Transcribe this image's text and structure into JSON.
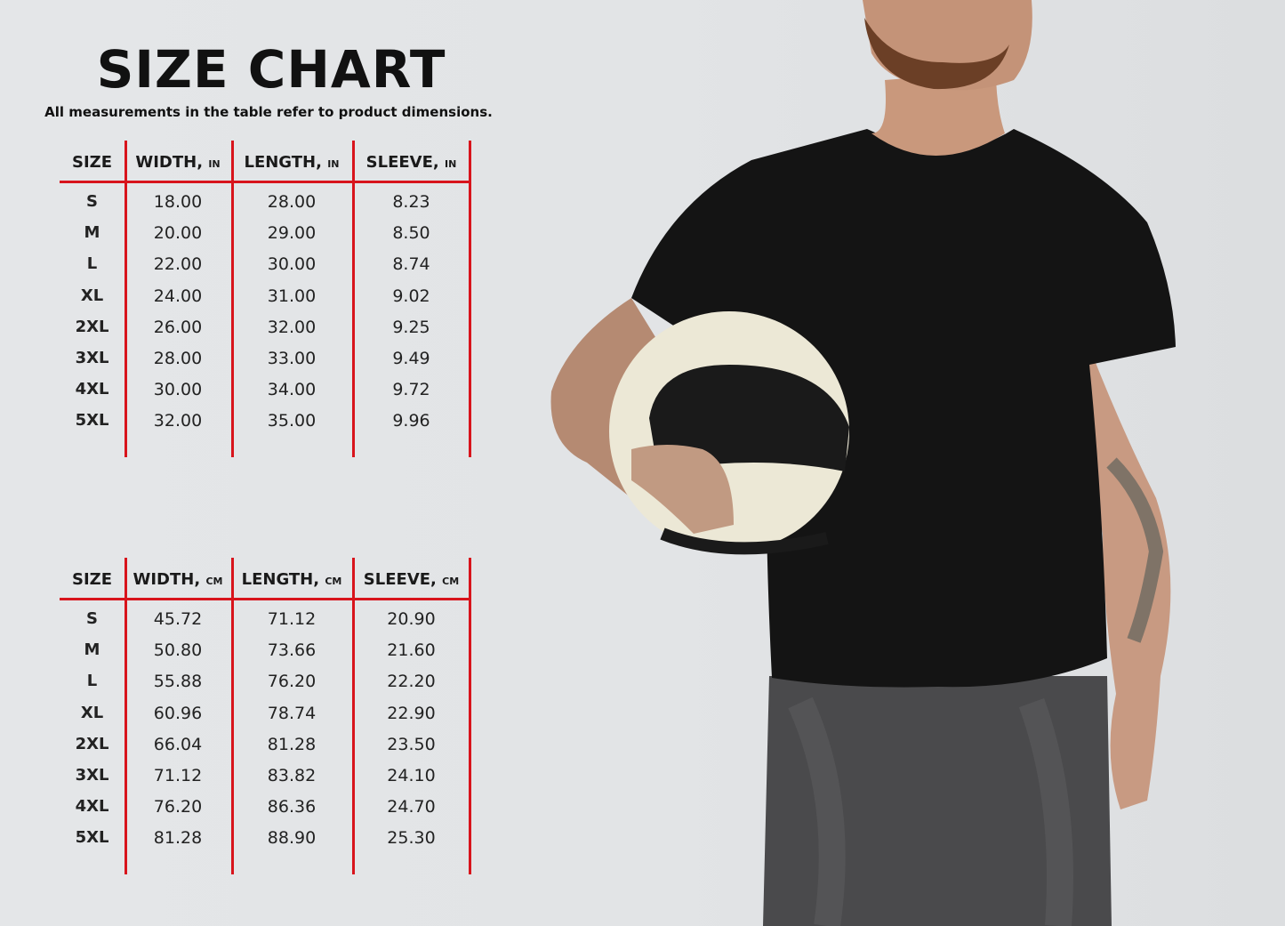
{
  "title": "SIZE CHART",
  "subtitle": "All measurements in the table refer to product dimensions.",
  "colors": {
    "accent_lines": "#d8141c",
    "text": "#111111",
    "background": "#e3e5e7"
  },
  "tables": [
    {
      "unit": "IN",
      "headers": [
        {
          "label": "SIZE",
          "unit": ""
        },
        {
          "label": "WIDTH,",
          "unit": "IN"
        },
        {
          "label": "LENGTH,",
          "unit": "IN"
        },
        {
          "label": "SLEEVE,",
          "unit": "IN"
        }
      ],
      "rows": [
        [
          "S",
          "18.00",
          "28.00",
          "8.23"
        ],
        [
          "M",
          "20.00",
          "29.00",
          "8.50"
        ],
        [
          "L",
          "22.00",
          "30.00",
          "8.74"
        ],
        [
          "XL",
          "24.00",
          "31.00",
          "9.02"
        ],
        [
          "2XL",
          "26.00",
          "32.00",
          "9.25"
        ],
        [
          "3XL",
          "28.00",
          "33.00",
          "9.49"
        ],
        [
          "4XL",
          "30.00",
          "34.00",
          "9.72"
        ],
        [
          "5XL",
          "32.00",
          "35.00",
          "9.96"
        ]
      ]
    },
    {
      "unit": "CM",
      "headers": [
        {
          "label": "SIZE",
          "unit": ""
        },
        {
          "label": "WIDTH,",
          "unit": "CM"
        },
        {
          "label": "LENGTH,",
          "unit": "CM"
        },
        {
          "label": "SLEEVE,",
          "unit": "CM"
        }
      ],
      "rows": [
        [
          "S",
          "45.72",
          "71.12",
          "20.90"
        ],
        [
          "M",
          "50.80",
          "73.66",
          "21.60"
        ],
        [
          "L",
          "55.88",
          "76.20",
          "22.20"
        ],
        [
          "XL",
          "60.96",
          "78.74",
          "22.90"
        ],
        [
          "2XL",
          "66.04",
          "81.28",
          "23.50"
        ],
        [
          "3XL",
          "71.12",
          "83.82",
          "24.10"
        ],
        [
          "4XL",
          "76.20",
          "86.36",
          "24.70"
        ],
        [
          "5XL",
          "81.28",
          "88.90",
          "25.30"
        ]
      ]
    }
  ]
}
